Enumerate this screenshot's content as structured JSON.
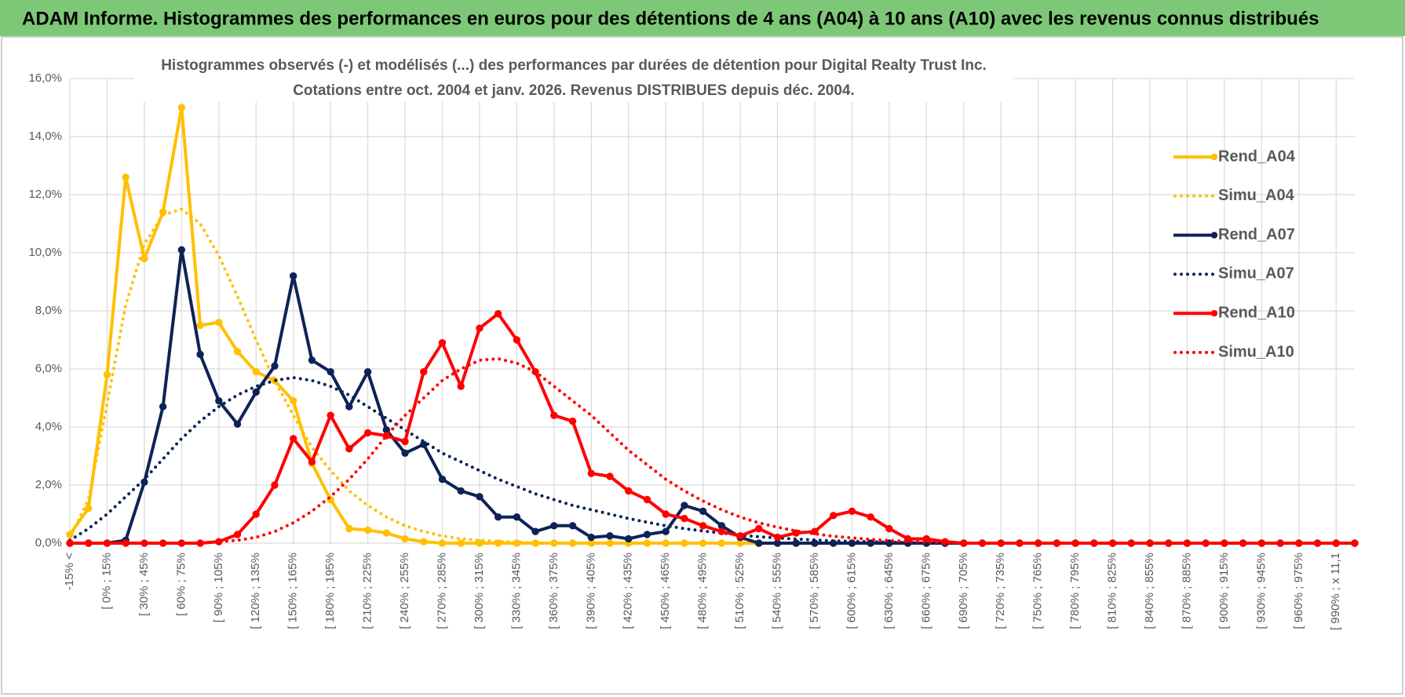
{
  "header": {
    "title": "ADAM Informe. Histogrammes des performances en euros pour des détentions de 4 ans (A04) à 10 ans (A10) avec les revenus connus distribués"
  },
  "chart_data": {
    "type": "line",
    "title": "Histogrammes observés (-) et modélisés (...) des performances par durées de détention pour Digital Realty Trust Inc.",
    "subtitle": "Cotations entre oct. 2004 et janv. 2026. Revenus DISTRIBUES depuis déc. 2004.",
    "categories": [
      "-15% <",
      null,
      "[ 0% ; 15%",
      null,
      "[ 30% ; 45%",
      null,
      "[ 60% ; 75%",
      null,
      "[ 90% ; 105%",
      null,
      "[ 120% ; 135%",
      null,
      "[ 150% ; 165%",
      null,
      "[ 180% ; 195%",
      null,
      "[ 210% ; 225%",
      null,
      "[ 240% ; 255%",
      null,
      "[ 270% ; 285%",
      null,
      "[ 300% ; 315%",
      null,
      "[ 330% ; 345%",
      null,
      "[ 360% ; 375%",
      null,
      "[ 390% ; 405%",
      null,
      "[ 420% ; 435%",
      null,
      "[ 450% ; 465%",
      null,
      "[ 480% ; 495%",
      null,
      "[ 510% ; 525%",
      null,
      "[ 540% ; 555%",
      null,
      "[ 570% ; 585%",
      null,
      "[ 600% ; 615%",
      null,
      "[ 630% ; 645%",
      null,
      "[ 660% ; 675%",
      null,
      "[ 690% ; 705%",
      null,
      "[ 720% ; 735%",
      null,
      "[ 750% ; 765%",
      null,
      "[ 780% ; 795%",
      null,
      "[ 810% ; 825%",
      null,
      "[ 840% ; 855%",
      null,
      "[ 870% ; 885%",
      null,
      "[ 900% ; 915%",
      null,
      "[ 930% ; 945%",
      null,
      "[ 960% ; 975%",
      null,
      "[ 990% ; x 11,1",
      null
    ],
    "series": [
      {
        "name": "Rend_A04",
        "color": "#ffc000",
        "line_style": "solid",
        "markers": true,
        "values": [
          0.3,
          1.2,
          5.8,
          12.6,
          9.8,
          11.4,
          15.0,
          7.5,
          7.6,
          6.6,
          5.9,
          5.6,
          4.9,
          2.75,
          1.5,
          0.5,
          0.45,
          0.35,
          0.15,
          0.05,
          0,
          0,
          0,
          0,
          0,
          0,
          0,
          0,
          0,
          0,
          0,
          0,
          0,
          0,
          0,
          0,
          0,
          0,
          0,
          0,
          0,
          0,
          0,
          0,
          0,
          0,
          0,
          0,
          0,
          0,
          0,
          0,
          0,
          0,
          0,
          0,
          0,
          0,
          0,
          0,
          0,
          0,
          0,
          0,
          0,
          0,
          0,
          0,
          0,
          0
        ]
      },
      {
        "name": "Simu_A04",
        "color": "#ffc000",
        "line_style": "dotted",
        "markers": false,
        "values": [
          0.2,
          1.5,
          4.8,
          8.2,
          10.3,
          11.3,
          11.5,
          11.0,
          9.9,
          8.5,
          7.0,
          5.6,
          4.4,
          3.3,
          2.5,
          1.8,
          1.3,
          0.9,
          0.6,
          0.4,
          0.25,
          0.15,
          0.1,
          0.06,
          0.04,
          0,
          0,
          0,
          0,
          0,
          0,
          0,
          0,
          0,
          0,
          0,
          0,
          0,
          0,
          0,
          0,
          0,
          0,
          0,
          0,
          0,
          0,
          0,
          0,
          0,
          0,
          0,
          0,
          0,
          0,
          0,
          0,
          0,
          0,
          0,
          0,
          0,
          0,
          0,
          0,
          0,
          0,
          0,
          0,
          0
        ]
      },
      {
        "name": "Rend_A07",
        "color": "#0d2357",
        "line_style": "solid",
        "markers": true,
        "values": [
          0,
          0,
          0,
          0.1,
          2.1,
          4.7,
          10.1,
          6.5,
          4.9,
          4.1,
          5.2,
          6.1,
          9.2,
          6.3,
          5.9,
          4.7,
          5.9,
          3.9,
          3.1,
          3.4,
          2.2,
          1.8,
          1.6,
          0.9,
          0.9,
          0.4,
          0.6,
          0.6,
          0.2,
          0.25,
          0.15,
          0.3,
          0.4,
          1.3,
          1.1,
          0.6,
          0.2,
          0,
          0,
          0,
          0,
          0,
          0,
          0,
          0,
          0,
          0,
          0,
          0,
          0,
          0,
          0,
          0,
          0,
          0,
          0,
          0,
          0,
          0,
          0,
          0,
          0,
          0,
          0,
          0,
          0,
          0,
          0,
          0,
          0
        ]
      },
      {
        "name": "Simu_A07",
        "color": "#0d2357",
        "line_style": "dotted",
        "markers": false,
        "values": [
          0.1,
          0.5,
          1.0,
          1.6,
          2.2,
          2.9,
          3.6,
          4.2,
          4.7,
          5.1,
          5.4,
          5.6,
          5.7,
          5.6,
          5.4,
          5.1,
          4.7,
          4.3,
          3.9,
          3.5,
          3.1,
          2.8,
          2.5,
          2.2,
          1.95,
          1.7,
          1.5,
          1.3,
          1.15,
          1.0,
          0.85,
          0.72,
          0.6,
          0.5,
          0.42,
          0.35,
          0.28,
          0.22,
          0.18,
          0.14,
          0.11,
          0.08,
          0.06,
          0.05,
          0.03,
          0.02,
          0,
          0,
          0,
          0,
          0,
          0,
          0,
          0,
          0,
          0,
          0,
          0,
          0,
          0,
          0,
          0,
          0,
          0,
          0,
          0,
          0,
          0,
          0,
          0
        ]
      },
      {
        "name": "Rend_A10",
        "color": "#ff0000",
        "line_style": "solid",
        "markers": true,
        "values": [
          0,
          0,
          0,
          0,
          0,
          0,
          0,
          0,
          0.05,
          0.3,
          1.0,
          2.0,
          3.6,
          2.8,
          4.4,
          3.25,
          3.8,
          3.7,
          3.5,
          5.9,
          6.9,
          5.4,
          7.4,
          7.9,
          7.0,
          5.9,
          4.4,
          4.2,
          2.4,
          2.3,
          1.8,
          1.5,
          1.0,
          0.85,
          0.6,
          0.4,
          0.25,
          0.5,
          0.2,
          0.35,
          0.4,
          0.95,
          1.1,
          0.9,
          0.5,
          0.15,
          0.15,
          0.05,
          0,
          0,
          0,
          0,
          0,
          0,
          0,
          0,
          0,
          0,
          0,
          0,
          0,
          0,
          0,
          0,
          0,
          0,
          0,
          0,
          0,
          0
        ]
      },
      {
        "name": "Simu_A10",
        "color": "#ff0000",
        "line_style": "dotted",
        "markers": false,
        "values": [
          0,
          0,
          0,
          0,
          0,
          0,
          0,
          0,
          0.05,
          0.1,
          0.2,
          0.4,
          0.7,
          1.1,
          1.6,
          2.2,
          2.9,
          3.7,
          4.4,
          5.0,
          5.6,
          6.0,
          6.3,
          6.35,
          6.2,
          5.9,
          5.4,
          4.9,
          4.4,
          3.8,
          3.2,
          2.7,
          2.2,
          1.8,
          1.45,
          1.15,
          0.9,
          0.7,
          0.55,
          0.42,
          0.32,
          0.24,
          0.18,
          0.13,
          0.09,
          0.06,
          0.04,
          0.02,
          0,
          0,
          0,
          0,
          0,
          0,
          0,
          0,
          0,
          0,
          0,
          0,
          0,
          0,
          0,
          0,
          0,
          0,
          0,
          0,
          0,
          0
        ]
      }
    ],
    "ylim": [
      0,
      16
    ],
    "yticks": [
      {
        "value": 0,
        "label": "0,0%"
      },
      {
        "value": 2,
        "label": "2,0%"
      },
      {
        "value": 4,
        "label": "4,0%"
      },
      {
        "value": 6,
        "label": "6,0%"
      },
      {
        "value": 8,
        "label": "8,0%"
      },
      {
        "value": 10,
        "label": "10,0%"
      },
      {
        "value": 12,
        "label": "12,0%"
      },
      {
        "value": 14,
        "label": "14,0%"
      },
      {
        "value": 16,
        "label": "16,0%"
      }
    ],
    "grid": true,
    "legend": "right"
  }
}
